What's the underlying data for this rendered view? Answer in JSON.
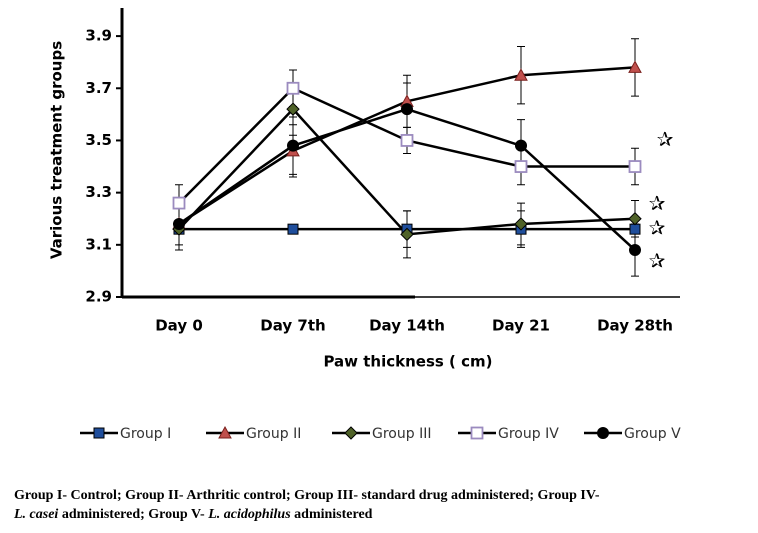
{
  "chart_data": {
    "type": "line",
    "x_label": "Paw thickness ( cm)",
    "y_label": "Various treatment groups",
    "categories": [
      "Day 0",
      "Day 7th",
      "Day 14th",
      "Day 21",
      "Day 28th"
    ],
    "ylim": [
      2.9,
      4.0
    ],
    "yticks": [
      {
        "value": 2.9,
        "label": "2.9"
      },
      3.1,
      3.3,
      3.5,
      3.7,
      3.9
    ],
    "series": [
      {
        "name": "Group I",
        "marker": "square",
        "color": "#1f4e9c",
        "values": [
          3.16,
          3.16,
          3.16,
          3.16,
          3.16
        ],
        "errors": [
          0.08,
          0,
          0.07,
          0.07,
          0
        ],
        "annotation": "✰"
      },
      {
        "name": "Group II",
        "marker": "triangle",
        "color": "#c0504d",
        "values": [
          3.18,
          3.46,
          3.65,
          3.75,
          3.78
        ],
        "errors": [
          0.08,
          0.1,
          0.1,
          0.11,
          0.11
        ]
      },
      {
        "name": "Group III",
        "marker": "diamond",
        "color": "#4f6228",
        "values": [
          3.16,
          3.62,
          3.14,
          3.18,
          3.2
        ],
        "errors": [
          0.08,
          0.1,
          0.09,
          0.08,
          0.07
        ],
        "annotation": "✰"
      },
      {
        "name": "Group IV",
        "marker": "square-open",
        "color": "#9b8bbf",
        "values": [
          3.26,
          3.7,
          3.5,
          3.4,
          3.4
        ],
        "errors": [
          0.07,
          0.07,
          0.05,
          0.07,
          0.07
        ],
        "annotation": "✰"
      },
      {
        "name": "Group V",
        "marker": "circle",
        "color": "#000000",
        "values": [
          3.18,
          3.48,
          3.62,
          3.48,
          3.08
        ],
        "errors": [
          0.1,
          0.11,
          0.1,
          0.1,
          0.1
        ],
        "annotation": "✰"
      }
    ]
  },
  "caption": {
    "segments": [
      "Group I- Control; Group II- Arthritic control; Group III- standard drug administered; Group IV-",
      "L. casei",
      " administered; Group V- ",
      "L. acidophilus",
      " administered"
    ]
  }
}
